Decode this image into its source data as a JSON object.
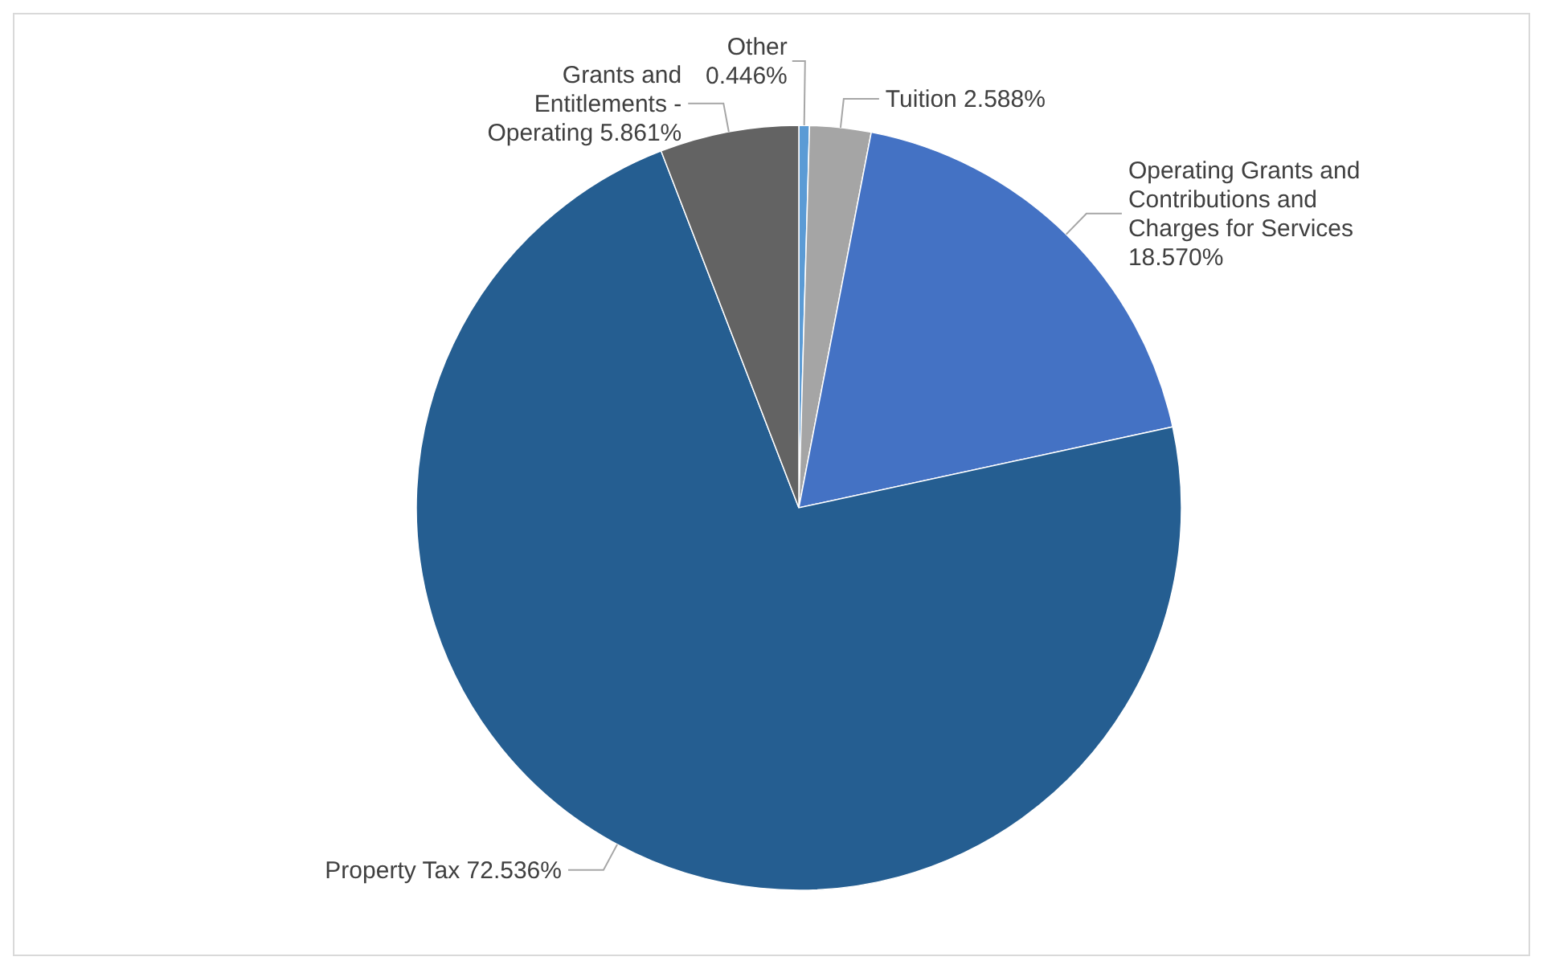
{
  "chart_data": {
    "type": "pie",
    "categories": [
      "Other",
      "Tuition",
      "Operating Grants and Contributions and Charges for Services",
      "Property Tax",
      "Grants and Entitlements - Operating"
    ],
    "values": [
      0.446,
      2.588,
      18.57,
      72.536,
      5.861
    ],
    "value_labels": [
      "0.446%",
      "2.588%",
      "18.570%",
      "72.536%",
      "5.861%"
    ],
    "colors": [
      "#5b9bd5",
      "#a5a5a5",
      "#4472c4",
      "#255e91",
      "#636363"
    ],
    "legend": false
  }
}
